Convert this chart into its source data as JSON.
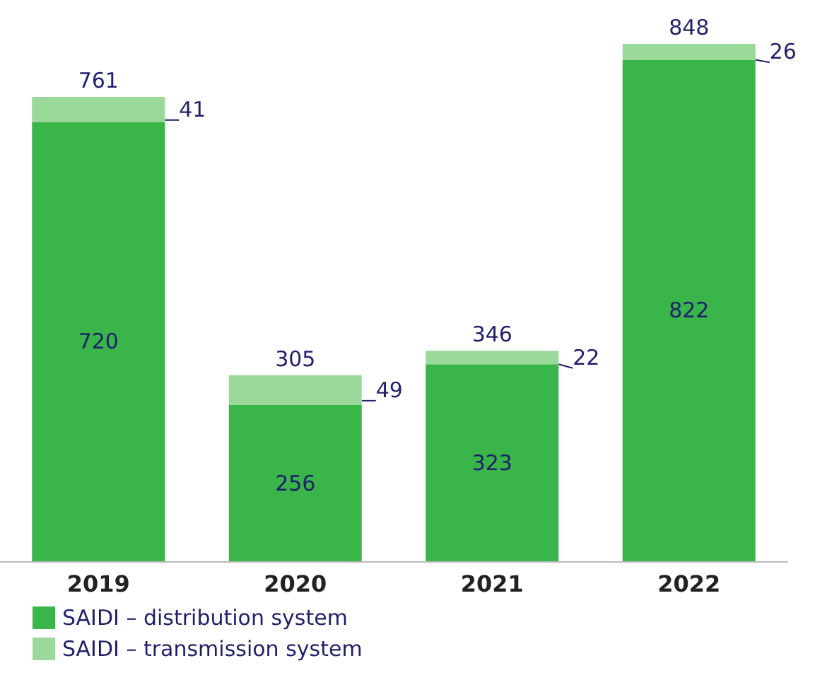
{
  "chart_data": {
    "type": "bar",
    "stacked": true,
    "categories": [
      "2019",
      "2020",
      "2021",
      "2022"
    ],
    "series": [
      {
        "name": "SAIDI – distribution system",
        "color": "#3ab54a",
        "values": [
          720,
          256,
          323,
          822
        ]
      },
      {
        "name": "SAIDI – transmission system",
        "color": "#9ad99a",
        "values": [
          41,
          49,
          22,
          26
        ]
      }
    ],
    "data_labels": true,
    "totals": [
      "761",
      "305",
      "346",
      "848"
    ],
    "legend": "bottom left"
  }
}
